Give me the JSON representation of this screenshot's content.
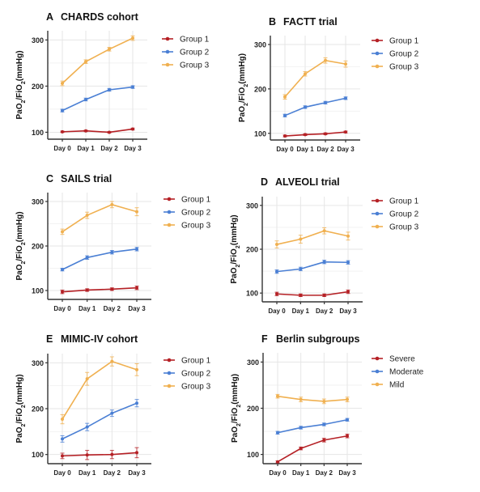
{
  "figure": {
    "ylabel_main": "PaO",
    "ylabel_sub1": "2",
    "ylabel_mid": "/FiO",
    "ylabel_sub2": "2",
    "ylabel_unit": "(mmHg)"
  },
  "colors": {
    "group1": "#b52025",
    "group2": "#4a7fd4",
    "group3": "#f0b050",
    "grid": "#e6e6e6",
    "axis": "#333333"
  },
  "chart_data": [
    {
      "type": "line",
      "letter": "A",
      "title": "CHARDS cohort",
      "categories": [
        "Day 0",
        "Day 1",
        "Day 2",
        "Day 3"
      ],
      "yticks": [
        100,
        200,
        300
      ],
      "ylim": [
        85,
        320
      ],
      "series": [
        {
          "name": "Group 1",
          "values": [
            101,
            103,
            100,
            107
          ],
          "err": [
            1.5,
            1.5,
            1.5,
            2
          ]
        },
        {
          "name": "Group 2",
          "values": [
            147,
            171,
            192,
            198
          ],
          "err": [
            3,
            3,
            3,
            3
          ]
        },
        {
          "name": "Group 3",
          "values": [
            206,
            253,
            280,
            304
          ],
          "err": [
            5,
            4,
            4,
            5
          ]
        }
      ]
    },
    {
      "type": "line",
      "letter": "B",
      "title": "FACTT trial",
      "categories": [
        "Day 0",
        "Day 1",
        "Day 2",
        "Day 3"
      ],
      "yticks": [
        100,
        200,
        300
      ],
      "ylim": [
        85,
        320
      ],
      "series": [
        {
          "name": "Group 1",
          "values": [
            94,
            97,
            99,
            103
          ],
          "err": [
            2,
            2,
            2,
            2
          ]
        },
        {
          "name": "Group 2",
          "values": [
            140,
            159,
            169,
            179
          ],
          "err": [
            3,
            3,
            3,
            3
          ]
        },
        {
          "name": "Group 3",
          "values": [
            182,
            234,
            264,
            256
          ],
          "err": [
            5,
            5,
            6,
            7
          ]
        }
      ]
    },
    {
      "type": "line",
      "letter": "C",
      "title": "SAILS trial",
      "categories": [
        "Day 0",
        "Day 1",
        "Day 2",
        "Day 3"
      ],
      "yticks": [
        100,
        200,
        300
      ],
      "ylim": [
        80,
        320
      ],
      "series": [
        {
          "name": "Group 1",
          "values": [
            97,
            101,
            103,
            106
          ],
          "err": [
            4,
            3,
            3,
            4
          ]
        },
        {
          "name": "Group 2",
          "values": [
            147,
            174,
            186,
            193
          ],
          "err": [
            3,
            4,
            4,
            4
          ]
        },
        {
          "name": "Group 3",
          "values": [
            232,
            269,
            293,
            277
          ],
          "err": [
            6,
            7,
            7,
            9
          ]
        }
      ]
    },
    {
      "type": "line",
      "letter": "D",
      "title": "ALVEOLI trial",
      "categories": [
        "Day 0",
        "Day 1",
        "Day 2",
        "Day 3"
      ],
      "yticks": [
        100,
        200,
        300
      ],
      "ylim": [
        80,
        320
      ],
      "series": [
        {
          "name": "Group 1",
          "values": [
            98,
            95,
            95,
            103
          ],
          "err": [
            4,
            3,
            3,
            4
          ]
        },
        {
          "name": "Group 2",
          "values": [
            149,
            155,
            171,
            170
          ],
          "err": [
            4,
            4,
            4,
            4
          ]
        },
        {
          "name": "Group 3",
          "values": [
            211,
            223,
            242,
            230
          ],
          "err": [
            8,
            9,
            7,
            9
          ]
        }
      ]
    },
    {
      "type": "line",
      "letter": "E",
      "title": "MIMIC-IV cohort",
      "categories": [
        "Day 0",
        "Day 1",
        "Day 2",
        "Day 3"
      ],
      "yticks": [
        100,
        200,
        300
      ],
      "ylim": [
        80,
        320
      ],
      "series": [
        {
          "name": "Group 1",
          "values": [
            97,
            99,
            100,
            104
          ],
          "err": [
            6,
            10,
            9,
            11
          ]
        },
        {
          "name": "Group 2",
          "values": [
            134,
            160,
            190,
            212
          ],
          "err": [
            7,
            8,
            7,
            8
          ]
        },
        {
          "name": "Group 3",
          "values": [
            177,
            265,
            303,
            285
          ],
          "err": [
            10,
            14,
            10,
            13
          ]
        }
      ]
    },
    {
      "type": "line",
      "letter": "F",
      "title": "Berlin subgroups",
      "categories": [
        "Day 0",
        "Day 1",
        "Day 2",
        "Day 3"
      ],
      "yticks": [
        100,
        200,
        300
      ],
      "ylim": [
        80,
        320
      ],
      "series": [
        {
          "name": "Severe",
          "values": [
            84,
            113,
            131,
            140
          ],
          "err": [
            2,
            3,
            4,
            4
          ]
        },
        {
          "name": "Moderate",
          "values": [
            147,
            158,
            165,
            175
          ],
          "err": [
            3,
            3,
            3,
            3
          ]
        },
        {
          "name": "Mild",
          "values": [
            226,
            219,
            215,
            219
          ],
          "err": [
            4,
            5,
            5,
            5
          ]
        }
      ]
    }
  ]
}
